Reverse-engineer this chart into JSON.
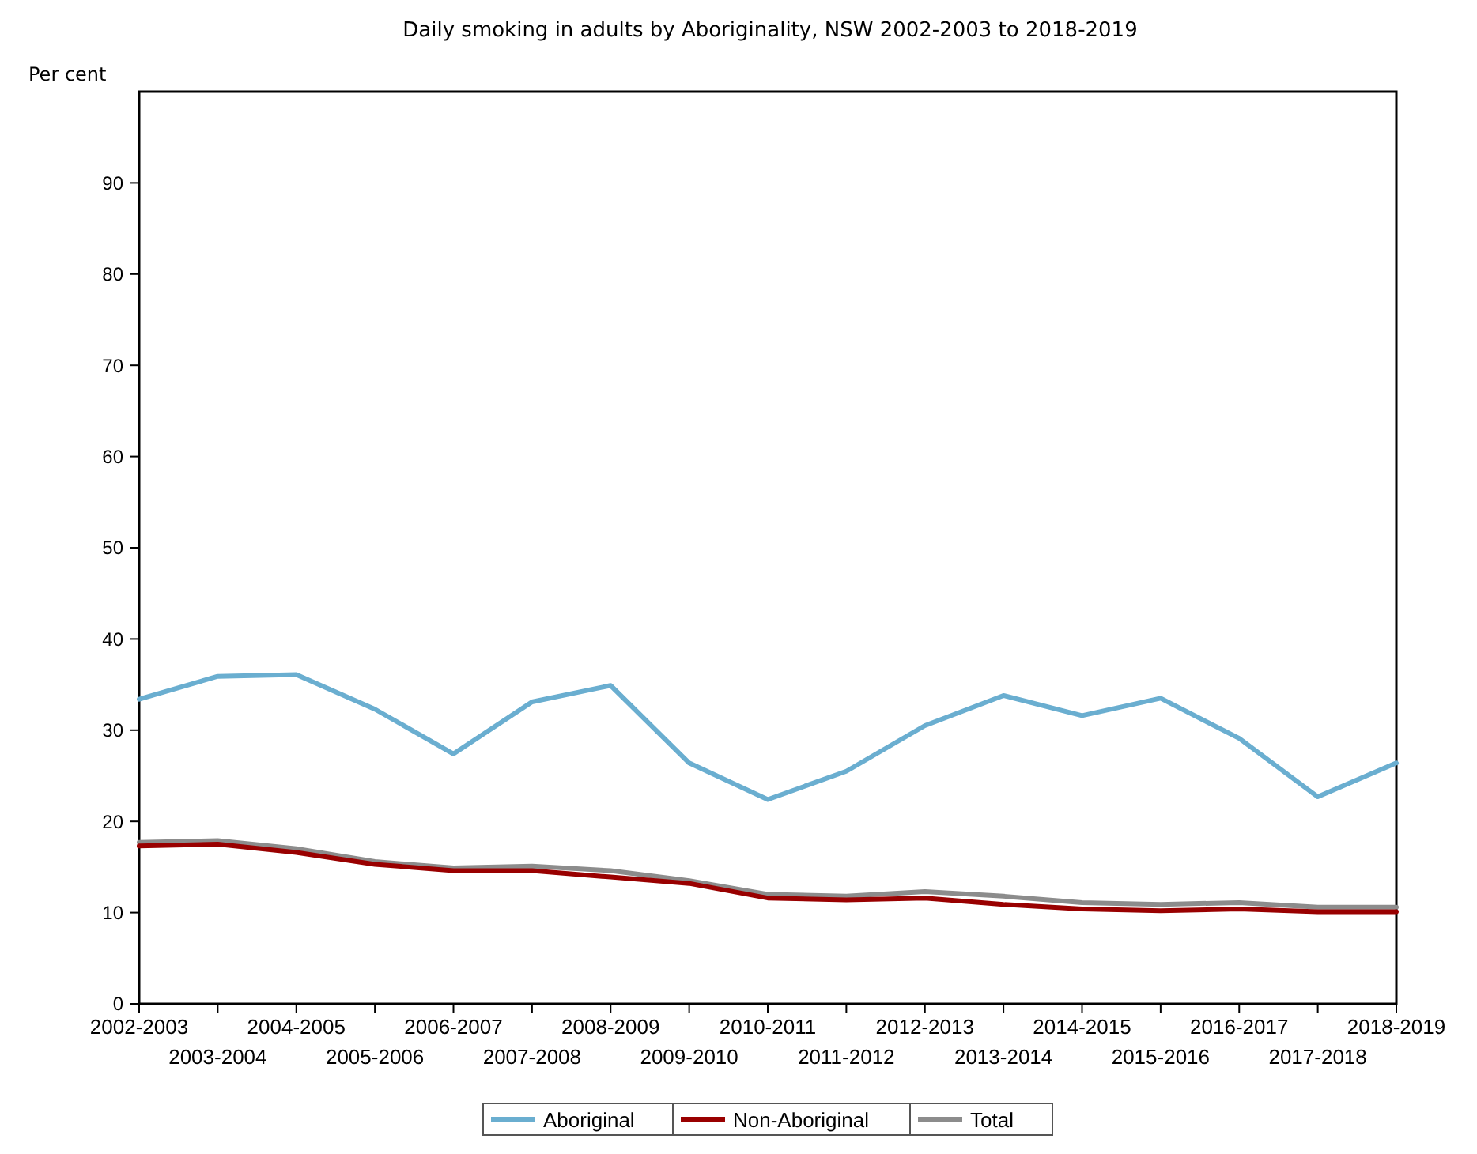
{
  "chart_data": {
    "type": "line",
    "title": "Daily smoking in adults by Aboriginality, NSW 2002-2003 to 2018-2019",
    "ylabel": "Per cent",
    "categories": [
      "2002-2003",
      "2003-2004",
      "2004-2005",
      "2005-2006",
      "2006-2007",
      "2007-2008",
      "2008-2009",
      "2009-2010",
      "2010-2011",
      "2011-2012",
      "2012-2013",
      "2013-2014",
      "2014-2015",
      "2015-2016",
      "2016-2017",
      "2017-2018",
      "2018-2019"
    ],
    "series": [
      {
        "name": "Aboriginal",
        "color": "#6aaed0",
        "values": [
          33.4,
          35.9,
          36.1,
          32.3,
          27.4,
          33.1,
          34.9,
          26.4,
          22.4,
          25.5,
          30.5,
          33.8,
          31.6,
          33.5,
          29.1,
          22.7,
          26.4
        ]
      },
      {
        "name": "Non-Aboriginal",
        "color": "#990000",
        "values": [
          17.3,
          17.5,
          16.6,
          15.3,
          14.6,
          14.6,
          13.9,
          13.2,
          11.6,
          11.4,
          11.6,
          10.9,
          10.4,
          10.2,
          10.4,
          10.1,
          10.1
        ]
      },
      {
        "name": "Total",
        "color": "#8c8c8c",
        "values": [
          17.7,
          17.9,
          17.0,
          15.6,
          14.9,
          15.1,
          14.6,
          13.5,
          12.0,
          11.8,
          12.3,
          11.8,
          11.1,
          10.9,
          11.1,
          10.6,
          10.6
        ]
      }
    ],
    "ylim": [
      0,
      100
    ],
    "yticks": [
      0,
      10,
      20,
      30,
      40,
      50,
      60,
      70,
      80,
      90
    ],
    "grid": false,
    "legend": "bottom",
    "marker": "none",
    "line_style": "solid"
  }
}
